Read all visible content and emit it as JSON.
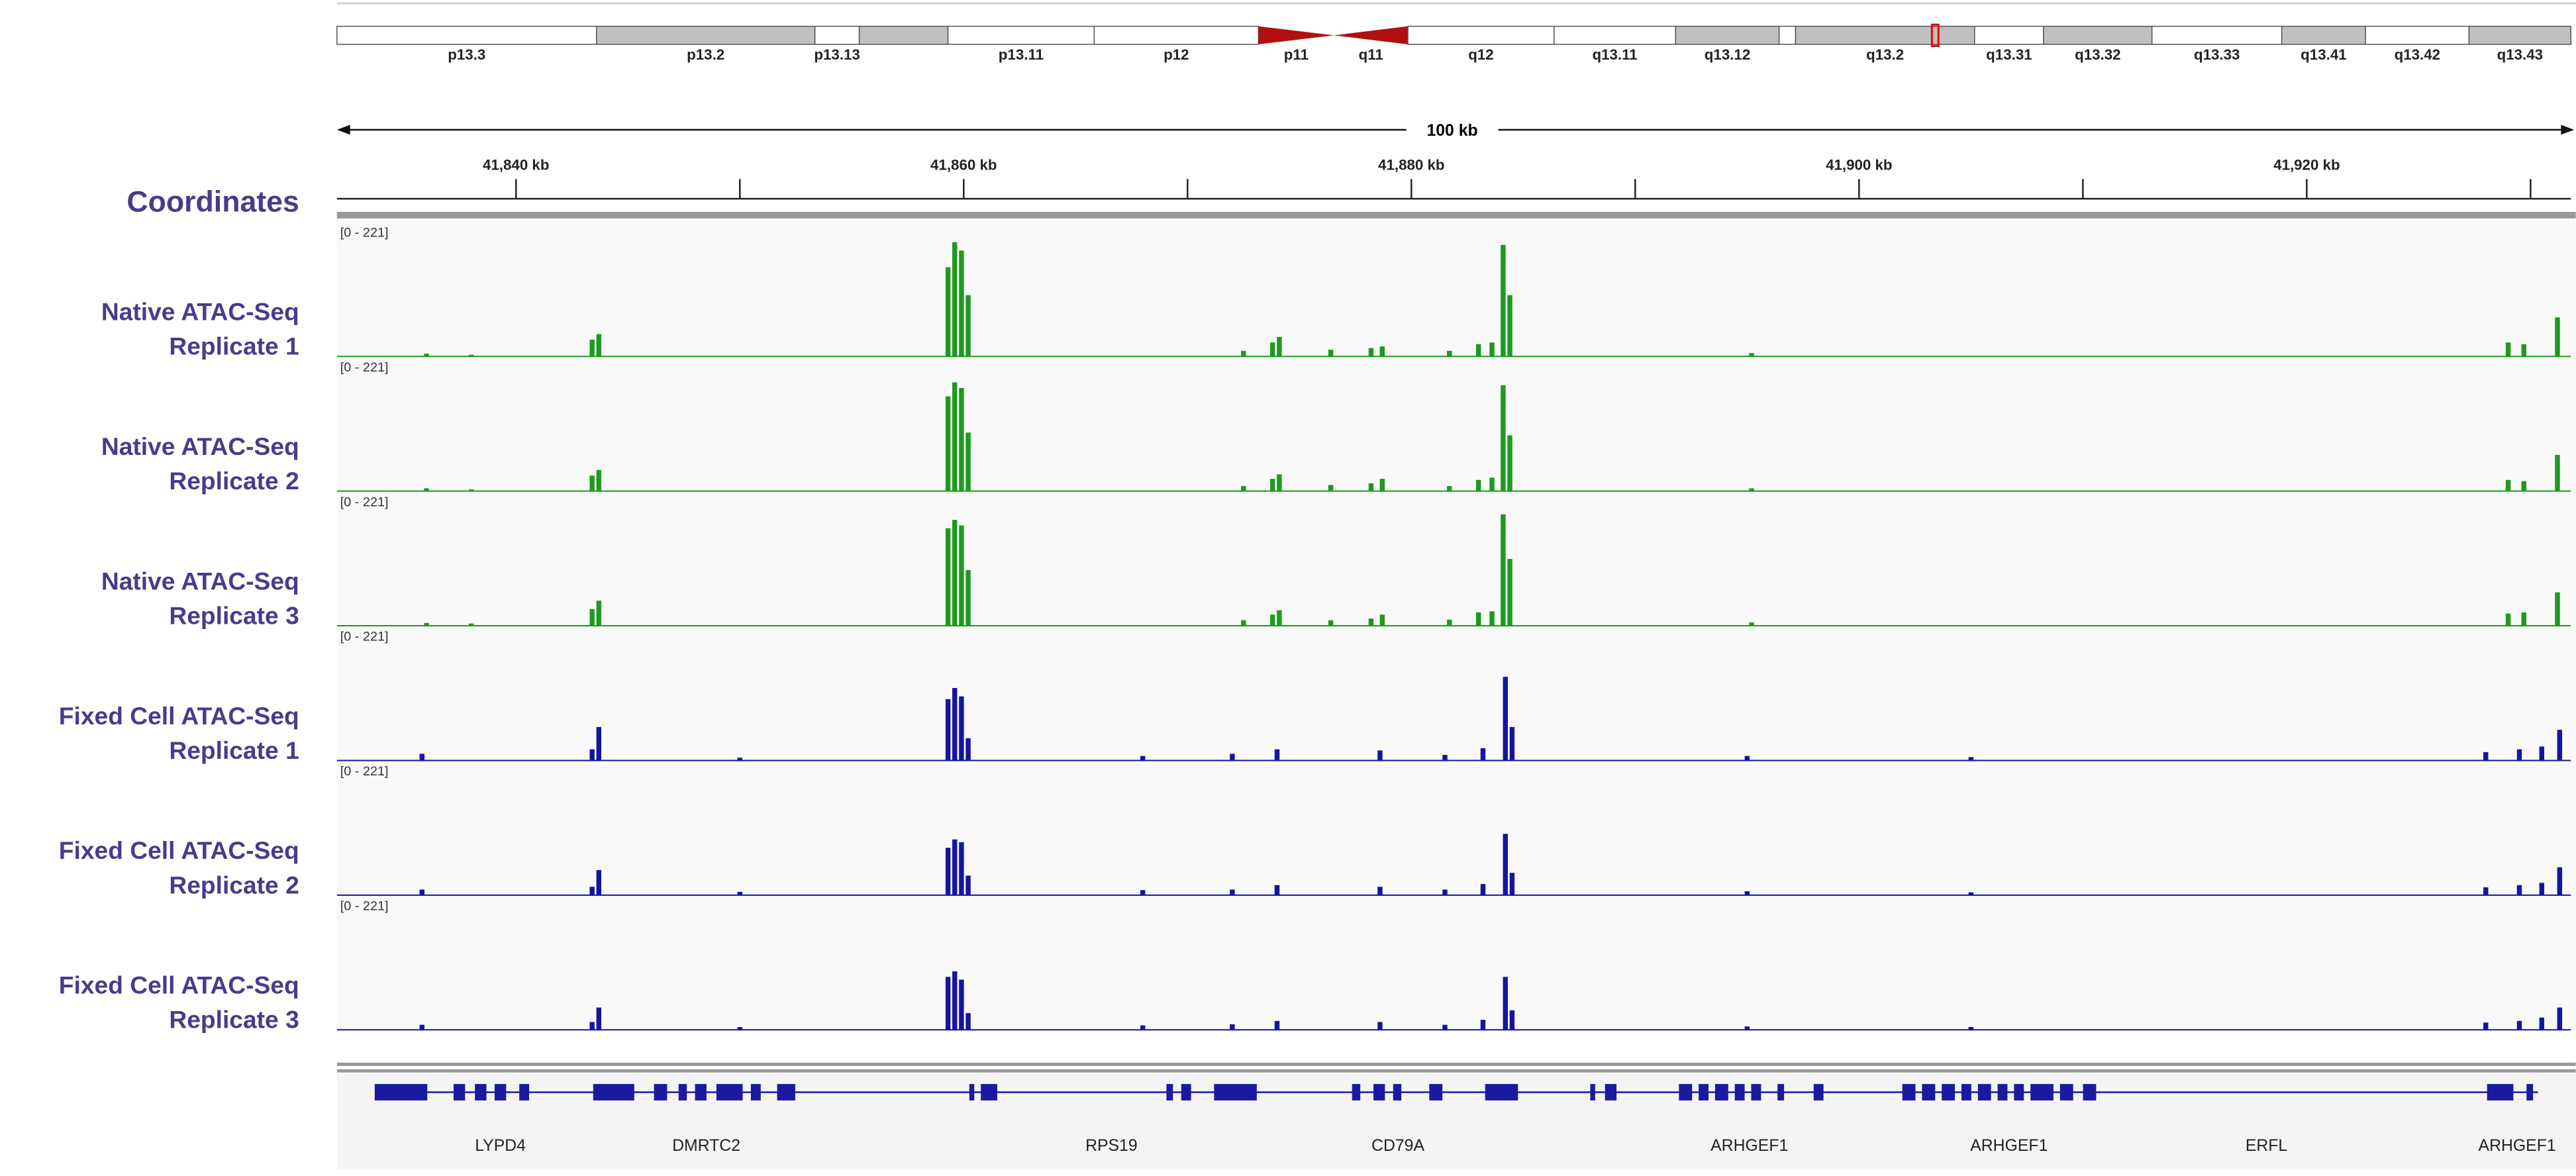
{
  "ideogram": {
    "bands": [
      {
        "label": "p13.3",
        "color": "#ffffff"
      },
      {
        "label": "p13.2",
        "color": "#c0c0c0"
      },
      {
        "label": "p13.13",
        "color": "#ffffff"
      },
      {
        "label": null,
        "color": "#c0c0c0"
      },
      {
        "label": "p13.11",
        "color": "#ffffff"
      },
      {
        "label": "p12",
        "color": "#ffffff"
      },
      {
        "label": "p11",
        "color": "#b01010"
      },
      {
        "label": "q11",
        "color": "#b01010"
      },
      {
        "label": "q12",
        "color": "#ffffff"
      },
      {
        "label": "q13.11",
        "color": "#ffffff"
      },
      {
        "label": "q13.12",
        "color": "#c0c0c0"
      },
      {
        "label": null,
        "color": "#ffffff"
      },
      {
        "label": "q13.2",
        "color": "#c0c0c0"
      },
      {
        "label": "q13.31",
        "color": "#ffffff"
      },
      {
        "label": "q13.32",
        "color": "#c0c0c0"
      },
      {
        "label": "q13.33",
        "color": "#ffffff"
      },
      {
        "label": "q13.41",
        "color": "#c0c0c0"
      },
      {
        "label": "q13.42",
        "color": "#ffffff"
      },
      {
        "label": "q13.43",
        "color": "#c0c0c0"
      }
    ]
  },
  "scale": {
    "label": "100 kb"
  },
  "coordinates": {
    "label": "Coordinates",
    "xlim": [
      41832,
      41931.8
    ],
    "ticks": [
      {
        "value": 41840,
        "label": "41,840 kb"
      },
      {
        "value": 41860,
        "label": "41,860 kb"
      },
      {
        "value": 41880,
        "label": "41,880 kb"
      },
      {
        "value": 41900,
        "label": "41,900 kb"
      },
      {
        "value": 41920,
        "label": "41,920 kb"
      }
    ],
    "minor_ticks": [
      41850,
      41870,
      41890,
      41910,
      41930
    ]
  },
  "tracks": [
    {
      "name": [
        "Native ATAC-Seq",
        "Replicate 1"
      ],
      "range": "[0 - 221]",
      "ylim": [
        0,
        221
      ],
      "color": "#1e9a1e",
      "x": [
        41836,
        41838,
        41843.4,
        41843.7,
        41859.3,
        41859.6,
        41859.9,
        41860.2,
        41872.5,
        41873.8,
        41874.1,
        41876.4,
        41878.2,
        41878.7,
        41881.7,
        41883,
        41883.6,
        41884.1,
        41884.4,
        41895.2,
        41929,
        41929.7,
        41931.2
      ],
      "values": [
        5,
        3,
        30,
        40,
        160,
        205,
        190,
        110,
        10,
        25,
        35,
        12,
        15,
        18,
        10,
        22,
        25,
        200,
        110,
        6,
        25,
        22,
        70
      ]
    },
    {
      "name": [
        "Native ATAC-Seq",
        "Replicate 2"
      ],
      "range": "[0 - 221]",
      "ylim": [
        0,
        221
      ],
      "color": "#1e9a1e",
      "x": [
        41836,
        41838,
        41843.4,
        41843.7,
        41859.3,
        41859.6,
        41859.9,
        41860.2,
        41872.5,
        41873.8,
        41874.1,
        41876.4,
        41878.2,
        41878.7,
        41881.7,
        41883,
        41883.6,
        41884.1,
        41884.4,
        41895.2,
        41929,
        41929.7,
        41931.2
      ],
      "values": [
        5,
        3,
        28,
        38,
        170,
        195,
        185,
        105,
        9,
        22,
        30,
        11,
        14,
        22,
        9,
        20,
        24,
        190,
        100,
        5,
        20,
        18,
        65
      ]
    },
    {
      "name": [
        "Native ATAC-Seq",
        "Replicate 3"
      ],
      "range": "[0 - 221]",
      "ylim": [
        0,
        221
      ],
      "color": "#1e9a1e",
      "x": [
        41836,
        41838,
        41843.4,
        41843.7,
        41859.3,
        41859.6,
        41859.9,
        41860.2,
        41872.5,
        41873.8,
        41874.1,
        41876.4,
        41878.2,
        41878.7,
        41881.7,
        41883,
        41883.6,
        41884.1,
        41884.4,
        41895.2,
        41929,
        41929.7,
        41931.2
      ],
      "values": [
        5,
        4,
        30,
        45,
        175,
        190,
        180,
        100,
        10,
        20,
        28,
        10,
        13,
        20,
        11,
        24,
        26,
        200,
        120,
        6,
        22,
        24,
        60
      ]
    },
    {
      "name": [
        "Fixed Cell ATAC-Seq",
        "Replicate 1"
      ],
      "range": "[0 - 221]",
      "ylim": [
        0,
        221
      ],
      "color": "#1515a0",
      "x": [
        41835.8,
        41843.4,
        41843.7,
        41850,
        41859.3,
        41859.6,
        41859.9,
        41860.2,
        41868,
        41872,
        41874,
        41878.6,
        41881.5,
        41883.2,
        41884.2,
        41884.5,
        41895,
        41905,
        41928,
        41929.5,
        41930.5,
        41931.3
      ],
      "values": [
        12,
        20,
        60,
        5,
        110,
        130,
        115,
        40,
        8,
        12,
        20,
        18,
        10,
        22,
        150,
        60,
        8,
        6,
        15,
        20,
        25,
        55
      ]
    },
    {
      "name": [
        "Fixed Cell ATAC-Seq",
        "Replicate 2"
      ],
      "range": "[0 - 221]",
      "ylim": [
        0,
        221
      ],
      "color": "#1515a0",
      "x": [
        41835.8,
        41843.4,
        41843.7,
        41850,
        41859.3,
        41859.6,
        41859.9,
        41860.2,
        41868,
        41872,
        41874,
        41878.6,
        41881.5,
        41883.2,
        41884.2,
        41884.5,
        41895,
        41905,
        41928,
        41929.5,
        41930.5,
        41931.3
      ],
      "values": [
        10,
        15,
        45,
        6,
        85,
        100,
        95,
        35,
        9,
        10,
        18,
        15,
        10,
        20,
        110,
        40,
        7,
        5,
        14,
        18,
        22,
        50
      ]
    },
    {
      "name": [
        "Fixed Cell ATAC-Seq",
        "Replicate 3"
      ],
      "range": "[0 - 221]",
      "ylim": [
        0,
        221
      ],
      "color": "#1515a0",
      "x": [
        41835.8,
        41843.4,
        41843.7,
        41850,
        41859.3,
        41859.6,
        41859.9,
        41860.2,
        41868,
        41872,
        41874,
        41878.6,
        41881.5,
        41883.2,
        41884.2,
        41884.5,
        41895,
        41905,
        41928,
        41929.5,
        41930.5,
        41931.3
      ],
      "values": [
        9,
        14,
        40,
        5,
        95,
        105,
        90,
        30,
        8,
        10,
        16,
        14,
        9,
        18,
        95,
        35,
        6,
        5,
        13,
        16,
        22,
        40
      ]
    }
  ],
  "genes": {
    "color": "#1a1aa0",
    "items": [
      {
        "name": "LYPD4",
        "x": 41839.3
      },
      {
        "name": "DMRTC2",
        "x": 41848.5
      },
      {
        "name": "RPS19",
        "x": 41866.6
      },
      {
        "name": "CD79A",
        "x": 41879.4
      },
      {
        "name": "ARHGEF1",
        "x": 41895.1
      },
      {
        "name": "ARHGEF1",
        "x": 41906.7
      },
      {
        "name": "ERFL",
        "x": 41918.2
      },
      {
        "name": "ARHGEF1",
        "x": 41929.4
      }
    ]
  }
}
